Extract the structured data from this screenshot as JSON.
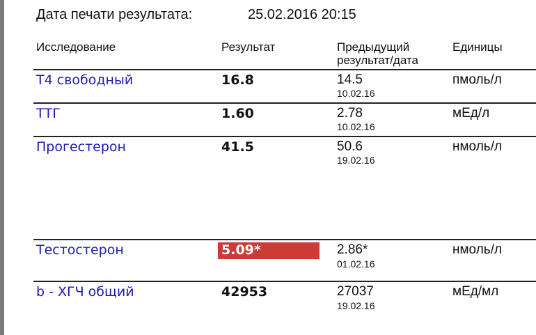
{
  "print_label": "Дата печати результата:",
  "print_date": "25.02.2016 20:15",
  "headers": {
    "test": "Исследование",
    "result": "Результат",
    "previous_line1": "Предыдущий",
    "previous_line2": "результат/дата",
    "units": "Единицы"
  },
  "flag_color": "#cc3b35",
  "rows": [
    {
      "name": "Т4 свободный",
      "result": "16.8",
      "prev": "14.5",
      "prev_date": "10.02.16",
      "units": "пмоль/л"
    },
    {
      "name": "ТТГ",
      "result": "1.60",
      "prev": "2.78",
      "prev_date": "10.02.16",
      "units": "мЕд/л"
    },
    {
      "name": "Прогестерон",
      "result": "41.5",
      "prev": "50.6",
      "prev_date": "19.02.16",
      "units": "нмоль/л"
    },
    {
      "name": "Тестостерон",
      "result": "5.09*",
      "prev": "2.86*",
      "prev_date": "01.02.16",
      "units": "нмоль/л",
      "flagged": true
    },
    {
      "name": "b - ХГЧ общий",
      "result": "42953",
      "prev": "27037",
      "prev_date": "19.02.16",
      "units": "мЕд/мл"
    }
  ]
}
